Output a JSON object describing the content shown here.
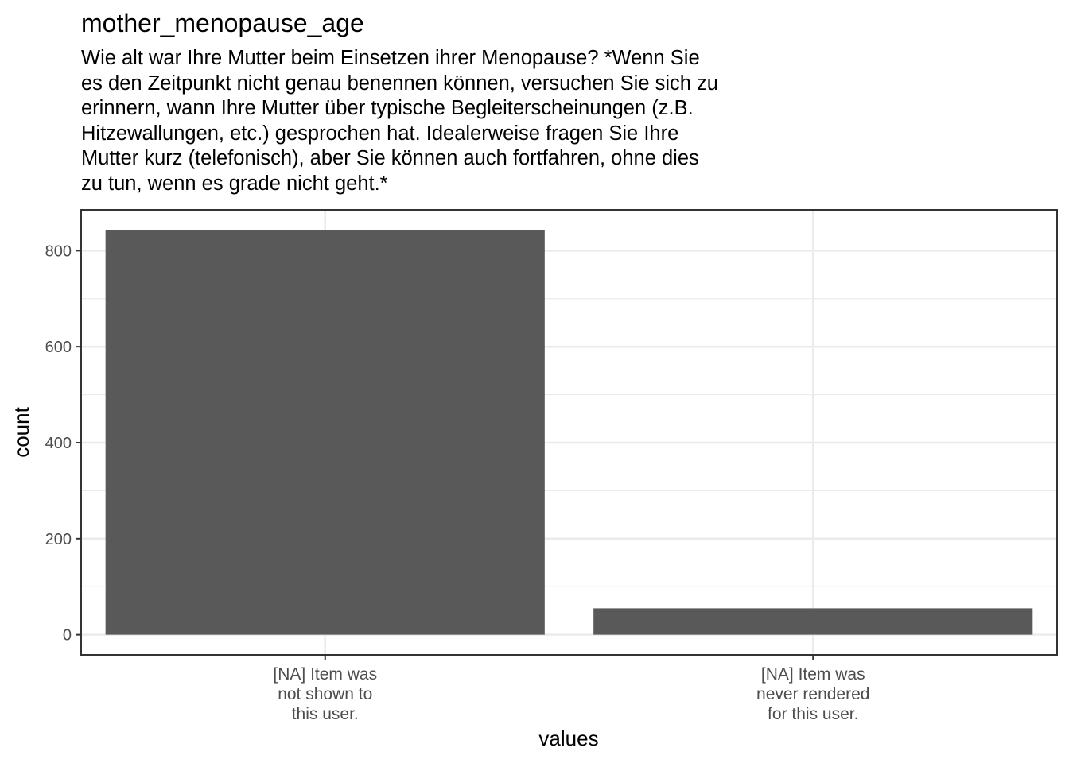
{
  "chart_data": {
    "type": "bar",
    "title": "mother_menopause_age",
    "subtitle_lines": [
      "Wie alt war Ihre Mutter beim Einsetzen ihrer Menopause? *Wenn Sie",
      "es den Zeitpunkt nicht genau benennen können, versuchen Sie sich zu",
      "erinnern, wann Ihre Mutter über typische Begleiterscheinungen (z.B.",
      "Hitzewallungen, etc.) gesprochen hat. Idealerweise fragen Sie Ihre",
      "Mutter kurz (telefonisch), aber Sie können auch fortfahren, ohne dies",
      "zu tun, wenn es grade nicht geht.*"
    ],
    "xlabel": "values",
    "ylabel": "count",
    "categories": [
      [
        "[NA] Item was",
        "not shown to",
        "this user."
      ],
      [
        "[NA] Item was",
        "never rendered",
        "for this user."
      ]
    ],
    "values": [
      843,
      55
    ],
    "yticks": [
      0,
      200,
      400,
      600,
      800
    ],
    "ylim": [
      -42,
      885
    ],
    "bar_color": "#595959",
    "grid": true,
    "legend": "none"
  }
}
